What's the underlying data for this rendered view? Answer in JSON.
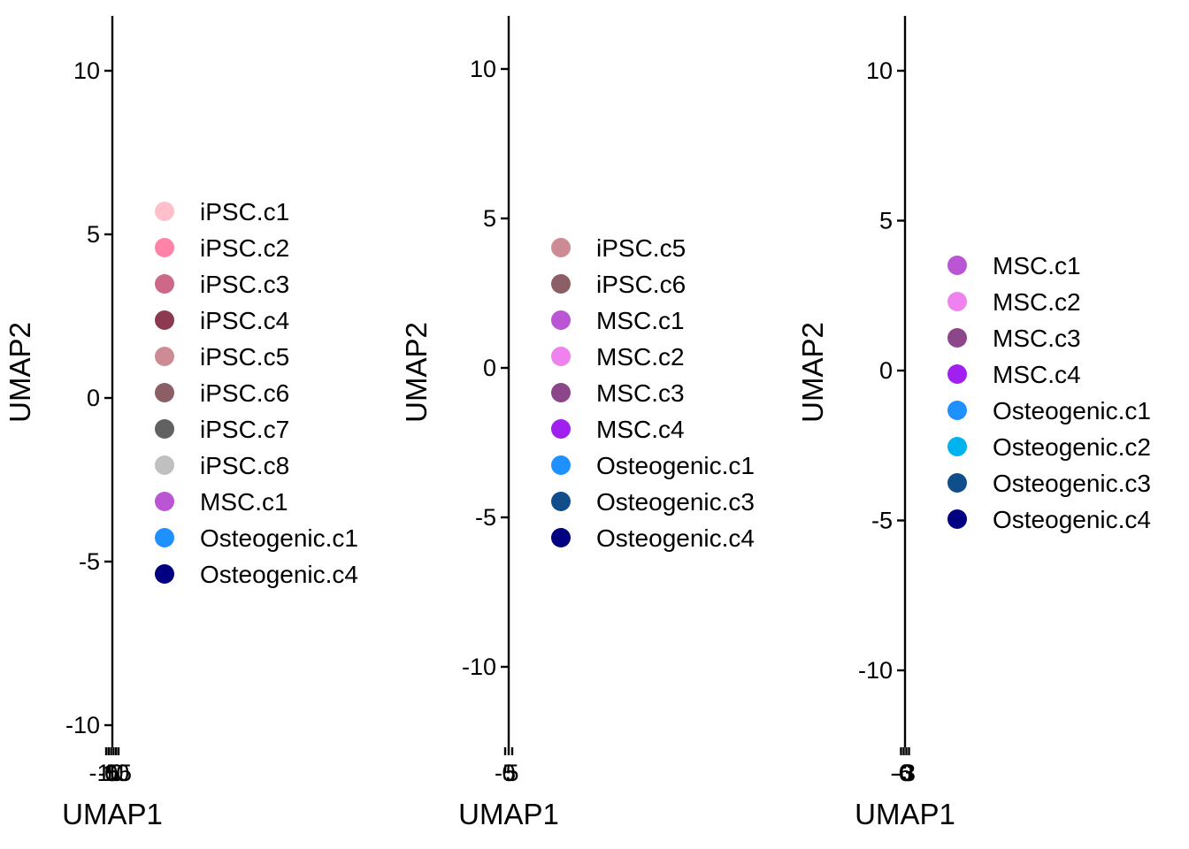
{
  "chart_data": [
    {
      "type": "scatter",
      "xlabel": "UMAP1",
      "ylabel": "UMAP2",
      "yticks": [
        {
          "value": 10,
          "label": "10"
        },
        {
          "value": 5,
          "label": "5"
        },
        {
          "value": 0,
          "label": "0"
        },
        {
          "value": -5,
          "label": "-5"
        },
        {
          "value": -10,
          "label": "-10"
        }
      ],
      "ylim": [
        -10.75,
        11.7
      ],
      "xticks": [
        {
          "value": -10,
          "label": "-10"
        },
        {
          "value": -5,
          "label": "-5"
        },
        {
          "value": 0,
          "label": "0"
        },
        {
          "value": 5,
          "label": "5"
        },
        {
          "value": 10,
          "label": "10"
        },
        {
          "value": 15,
          "label": "15"
        }
      ],
      "xlim": [
        -10,
        15
      ],
      "legend": [
        {
          "label": "iPSC.c1",
          "color": "#FFC0CB"
        },
        {
          "label": "iPSC.c2",
          "color": "#FF82A9"
        },
        {
          "label": "iPSC.c3",
          "color": "#CD6889"
        },
        {
          "label": "iPSC.c4",
          "color": "#8B3A52"
        },
        {
          "label": "iPSC.c5",
          "color": "#CD8C95"
        },
        {
          "label": "iPSC.c6",
          "color": "#8B5F65"
        },
        {
          "label": "iPSC.c7",
          "color": "#616161"
        },
        {
          "label": "iPSC.c8",
          "color": "#C0C0C0"
        },
        {
          "label": "MSC.c1",
          "color": "#BA55D3"
        },
        {
          "label": "Osteogenic.c1",
          "color": "#1E90FF"
        },
        {
          "label": "Osteogenic.c4",
          "color": "#000080"
        }
      ]
    },
    {
      "type": "scatter",
      "xlabel": "UMAP1",
      "ylabel": "UMAP2",
      "yticks": [
        {
          "value": 10,
          "label": "10"
        },
        {
          "value": 5,
          "label": "5"
        },
        {
          "value": 0,
          "label": "0"
        },
        {
          "value": -5,
          "label": "-5"
        },
        {
          "value": -10,
          "label": "-10"
        }
      ],
      "ylim": [
        -12.4,
        11.7
      ],
      "xticks": [
        {
          "value": -5,
          "label": "-5"
        },
        {
          "value": 0,
          "label": "0"
        },
        {
          "value": 5,
          "label": "5"
        }
      ],
      "xlim": [
        -5,
        5
      ],
      "legend": [
        {
          "label": "iPSC.c5",
          "color": "#CD8C95"
        },
        {
          "label": "iPSC.c6",
          "color": "#8B5F65"
        },
        {
          "label": "MSC.c1",
          "color": "#BA55D3"
        },
        {
          "label": "MSC.c2",
          "color": "#EE82EE"
        },
        {
          "label": "MSC.c3",
          "color": "#8B4789"
        },
        {
          "label": "MSC.c4",
          "color": "#A020F0"
        },
        {
          "label": "Osteogenic.c1",
          "color": "#1E90FF"
        },
        {
          "label": "Osteogenic.c3",
          "color": "#104E8B"
        },
        {
          "label": "Osteogenic.c4",
          "color": "#000080"
        }
      ]
    },
    {
      "type": "scatter",
      "xlabel": "UMAP1",
      "ylabel": "UMAP2",
      "yticks": [
        {
          "value": 10,
          "label": "10"
        },
        {
          "value": 5,
          "label": "5"
        },
        {
          "value": 0,
          "label": "0"
        },
        {
          "value": -5,
          "label": "-5"
        },
        {
          "value": -10,
          "label": "-10"
        }
      ],
      "ylim": [
        -12.2,
        11.8
      ],
      "xticks": [
        {
          "value": -6,
          "label": "-6"
        },
        {
          "value": -3,
          "label": "-3"
        },
        {
          "value": 0,
          "label": "0"
        },
        {
          "value": 3,
          "label": "3"
        }
      ],
      "xlim": [
        -6,
        3
      ],
      "legend": [
        {
          "label": "MSC.c1",
          "color": "#BA55D3"
        },
        {
          "label": "MSC.c2",
          "color": "#EE82EE"
        },
        {
          "label": "MSC.c3",
          "color": "#8B4789"
        },
        {
          "label": "MSC.c4",
          "color": "#A020F0"
        },
        {
          "label": "Osteogenic.c1",
          "color": "#1E90FF"
        },
        {
          "label": "Osteogenic.c2",
          "color": "#00B2EE"
        },
        {
          "label": "Osteogenic.c3",
          "color": "#104E8B"
        },
        {
          "label": "Osteogenic.c4",
          "color": "#000080"
        }
      ]
    }
  ]
}
